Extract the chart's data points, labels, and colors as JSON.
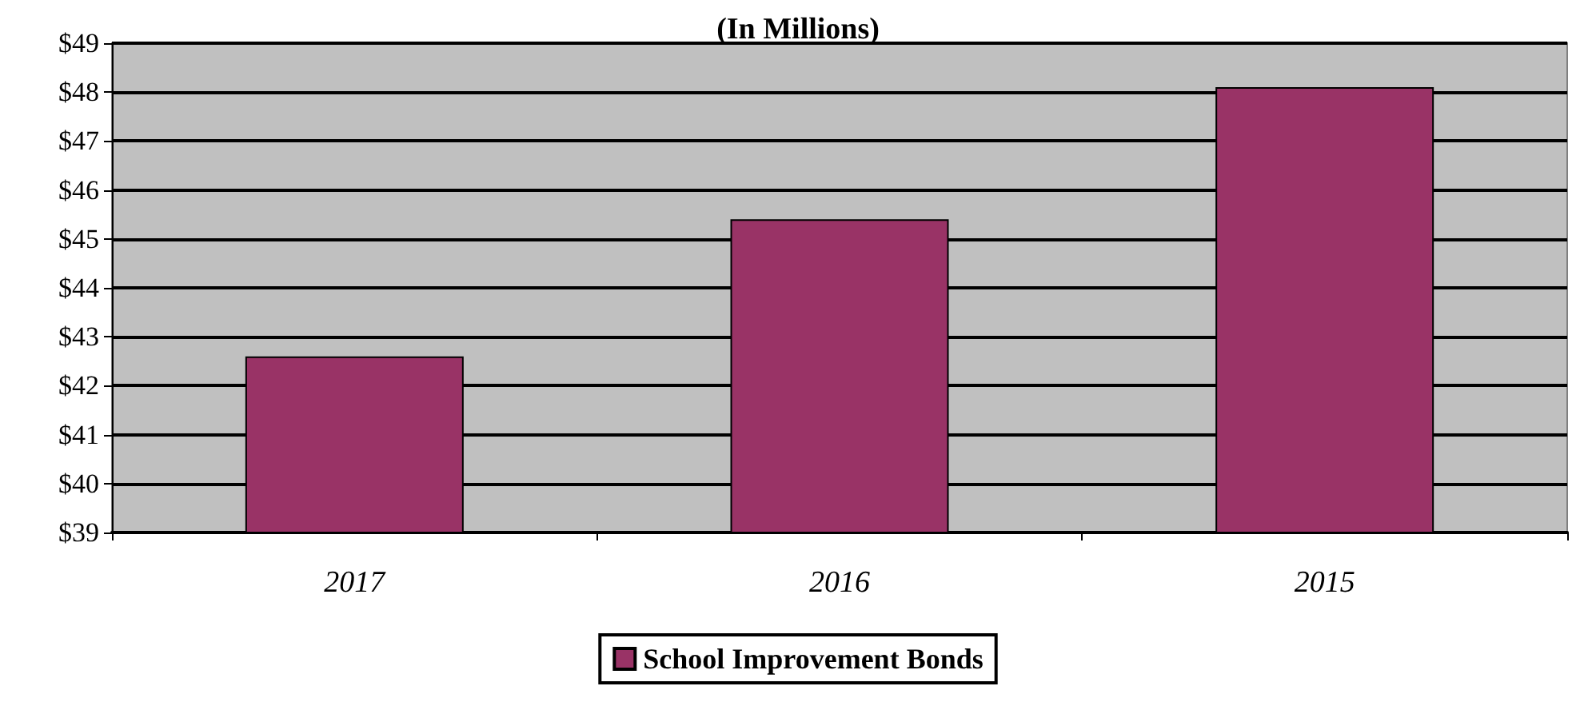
{
  "chart_data": {
    "type": "bar",
    "title": "(In Millions)",
    "categories": [
      "2017",
      "2016",
      "2015"
    ],
    "series": [
      {
        "name": "School Improvement Bonds",
        "color": "#993366",
        "values": [
          42.6,
          45.4,
          48.1
        ]
      }
    ],
    "ylim": [
      39,
      49
    ],
    "yticks": [
      {
        "value": 39,
        "label": "$39"
      },
      {
        "value": 40,
        "label": "$40"
      },
      {
        "value": 41,
        "label": "$41"
      },
      {
        "value": 42,
        "label": "$42"
      },
      {
        "value": 43,
        "label": "$43"
      },
      {
        "value": 44,
        "label": "$44"
      },
      {
        "value": 45,
        "label": "$45"
      },
      {
        "value": 46,
        "label": "$46"
      },
      {
        "value": 47,
        "label": "$47"
      },
      {
        "value": 48,
        "label": "$48"
      },
      {
        "value": 49,
        "label": "$49"
      }
    ],
    "grid": "y",
    "legend": "bottom"
  }
}
